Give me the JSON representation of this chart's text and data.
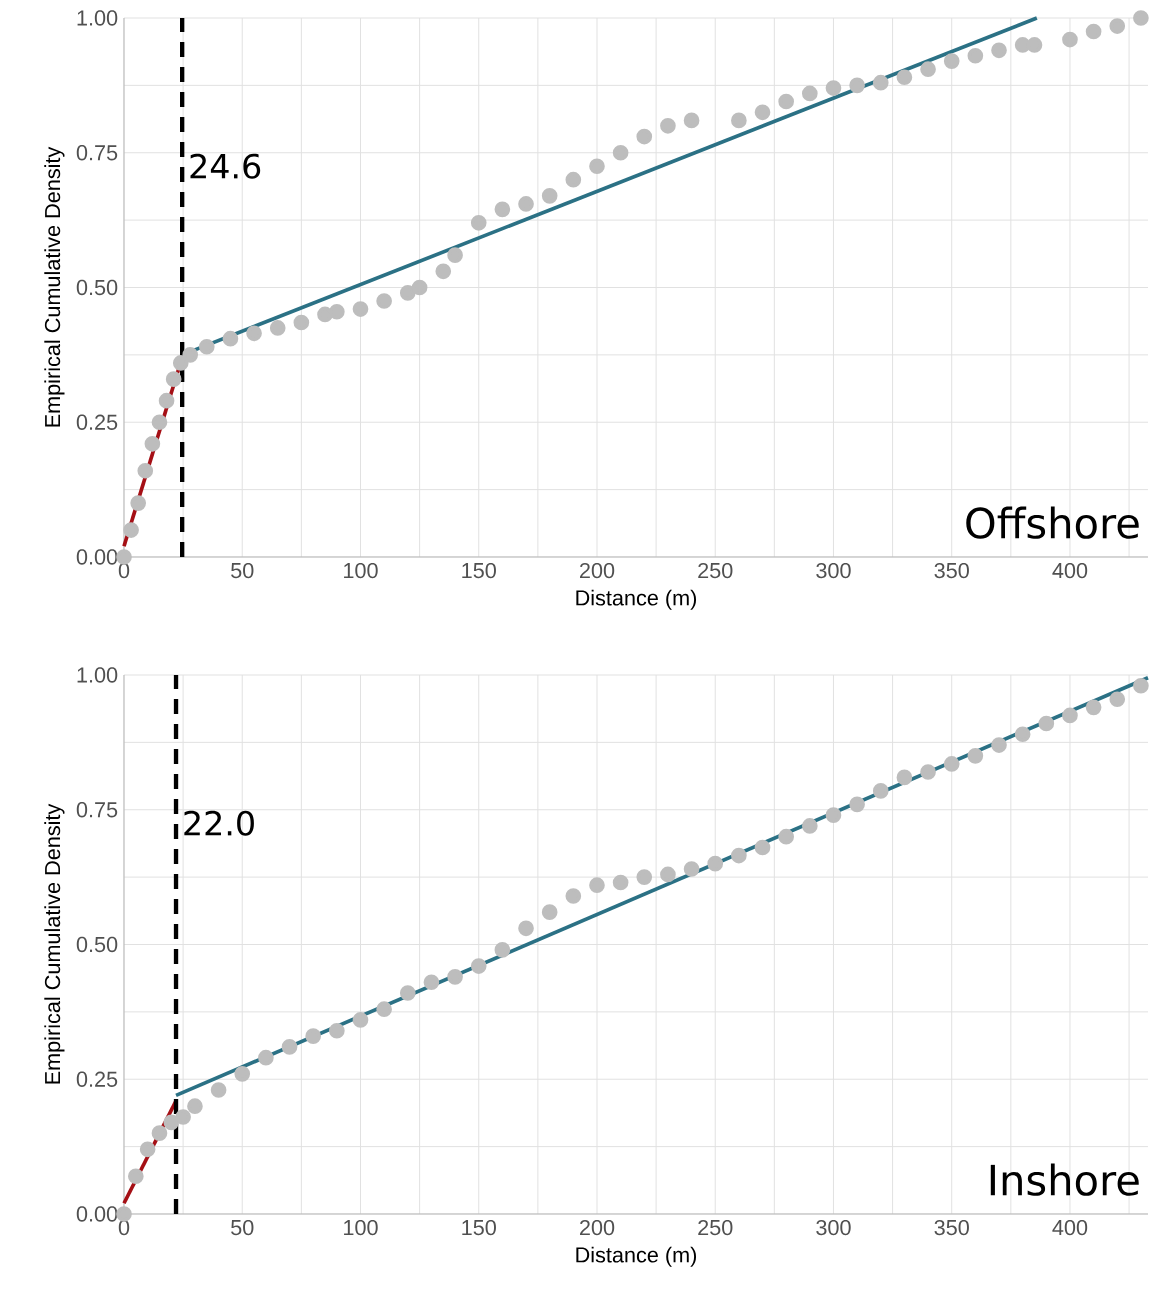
{
  "chart_data": [
    {
      "type": "scatter",
      "xlabel": "Distance (m)",
      "ylabel": "Empirical Cumulative Density",
      "xlim": [
        0,
        433
      ],
      "ylim": [
        0,
        1
      ],
      "grid": true,
      "xticks": [
        0,
        {
          "value": 25,
          "label": null
        },
        50,
        {
          "value": 75,
          "label": null
        },
        100,
        {
          "value": 125,
          "label": null
        },
        150,
        {
          "value": 175,
          "label": null
        },
        200,
        {
          "value": 225,
          "label": null
        },
        250,
        {
          "value": 275,
          "label": null
        },
        300,
        {
          "value": 325,
          "label": null
        },
        350,
        {
          "value": 375,
          "label": null
        },
        400,
        {
          "value": 425,
          "label": null
        }
      ],
      "yticks": [
        {
          "value": 0,
          "label": "0.00"
        },
        {
          "value": 0.125,
          "label": null
        },
        {
          "value": 0.25,
          "label": "0.25"
        },
        {
          "value": 0.375,
          "label": null
        },
        {
          "value": 0.5,
          "label": "0.50"
        },
        {
          "value": 0.625,
          "label": null
        },
        {
          "value": 0.75,
          "label": "0.75"
        },
        {
          "value": 0.875,
          "label": null
        },
        {
          "value": 1,
          "label": "1.00"
        }
      ],
      "series": [
        {
          "marker": "circle",
          "color": "#bdbdbd",
          "x": [
            0,
            3,
            6,
            9,
            12,
            15,
            18,
            21,
            24,
            28,
            35,
            45,
            55,
            65,
            75,
            85,
            90,
            100,
            110,
            120,
            125,
            135,
            140,
            150,
            160,
            170,
            180,
            190,
            200,
            210,
            220,
            230,
            240,
            260,
            270,
            280,
            290,
            300,
            310,
            320,
            330,
            340,
            350,
            360,
            370,
            380,
            385,
            400,
            410,
            420,
            430
          ],
          "values": [
            0,
            0.05,
            0.1,
            0.16,
            0.21,
            0.25,
            0.29,
            0.33,
            0.36,
            0.375,
            0.39,
            0.405,
            0.415,
            0.425,
            0.435,
            0.45,
            0.455,
            0.46,
            0.475,
            0.49,
            0.5,
            0.53,
            0.56,
            0.62,
            0.645,
            0.655,
            0.67,
            0.7,
            0.725,
            0.75,
            0.78,
            0.8,
            0.81,
            0.81,
            0.825,
            0.845,
            0.86,
            0.87,
            0.875,
            0.88,
            0.89,
            0.905,
            0.92,
            0.93,
            0.94,
            0.95,
            0.95,
            0.96,
            0.975,
            0.985,
            1
          ]
        },
        {
          "type": "line",
          "marker": "none",
          "color": "#a50f15",
          "x": [
            0,
            24.6
          ],
          "values": [
            0.02,
            0.37
          ]
        },
        {
          "type": "line",
          "marker": "none",
          "color": "#2b7185",
          "x": [
            24.6,
            386
          ],
          "values": [
            0.375,
            1
          ]
        }
      ],
      "ref_lines": [
        {
          "axis": "x",
          "value": 24.6,
          "label": "24.6",
          "color": "#000000",
          "line_style": "dashed"
        }
      ],
      "annotations": [
        "Offshore"
      ]
    },
    {
      "type": "scatter",
      "xlabel": "Distance (m)",
      "ylabel": "Empirical Cumulative Density",
      "xlim": [
        0,
        433
      ],
      "ylim": [
        0,
        1
      ],
      "grid": true,
      "xticks": [
        0,
        {
          "value": 25,
          "label": null
        },
        50,
        {
          "value": 75,
          "label": null
        },
        100,
        {
          "value": 125,
          "label": null
        },
        150,
        {
          "value": 175,
          "label": null
        },
        200,
        {
          "value": 225,
          "label": null
        },
        250,
        {
          "value": 275,
          "label": null
        },
        300,
        {
          "value": 325,
          "label": null
        },
        350,
        {
          "value": 375,
          "label": null
        },
        400,
        {
          "value": 425,
          "label": null
        }
      ],
      "yticks": [
        {
          "value": 0,
          "label": "0.00"
        },
        {
          "value": 0.125,
          "label": null
        },
        {
          "value": 0.25,
          "label": "0.25"
        },
        {
          "value": 0.375,
          "label": null
        },
        {
          "value": 0.5,
          "label": "0.50"
        },
        {
          "value": 0.625,
          "label": null
        },
        {
          "value": 0.75,
          "label": "0.75"
        },
        {
          "value": 0.875,
          "label": null
        },
        {
          "value": 1,
          "label": "1.00"
        }
      ],
      "series": [
        {
          "marker": "circle",
          "color": "#bdbdbd",
          "x": [
            0,
            5,
            10,
            15,
            20,
            25,
            30,
            40,
            50,
            60,
            70,
            80,
            90,
            100,
            110,
            120,
            130,
            140,
            150,
            160,
            170,
            180,
            190,
            200,
            210,
            220,
            230,
            240,
            250,
            260,
            270,
            280,
            290,
            300,
            310,
            320,
            330,
            340,
            350,
            360,
            370,
            380,
            390,
            400,
            410,
            420,
            430
          ],
          "values": [
            0,
            0.07,
            0.12,
            0.15,
            0.17,
            0.18,
            0.2,
            0.23,
            0.26,
            0.29,
            0.31,
            0.33,
            0.34,
            0.36,
            0.38,
            0.41,
            0.43,
            0.44,
            0.46,
            0.49,
            0.53,
            0.56,
            0.59,
            0.61,
            0.615,
            0.625,
            0.63,
            0.64,
            0.65,
            0.665,
            0.68,
            0.7,
            0.72,
            0.74,
            0.76,
            0.785,
            0.81,
            0.82,
            0.835,
            0.85,
            0.87,
            0.89,
            0.91,
            0.925,
            0.94,
            0.955,
            0.98
          ]
        },
        {
          "type": "line",
          "marker": "none",
          "color": "#a50f15",
          "x": [
            0,
            22
          ],
          "values": [
            0.02,
            0.21
          ]
        },
        {
          "type": "line",
          "marker": "none",
          "color": "#2b7185",
          "x": [
            22,
            433
          ],
          "values": [
            0.22,
            0.995
          ]
        }
      ],
      "ref_lines": [
        {
          "axis": "x",
          "value": 22.0,
          "label": "22.0",
          "color": "#000000",
          "line_style": "dashed"
        }
      ],
      "annotations": [
        "Inshore"
      ]
    }
  ]
}
